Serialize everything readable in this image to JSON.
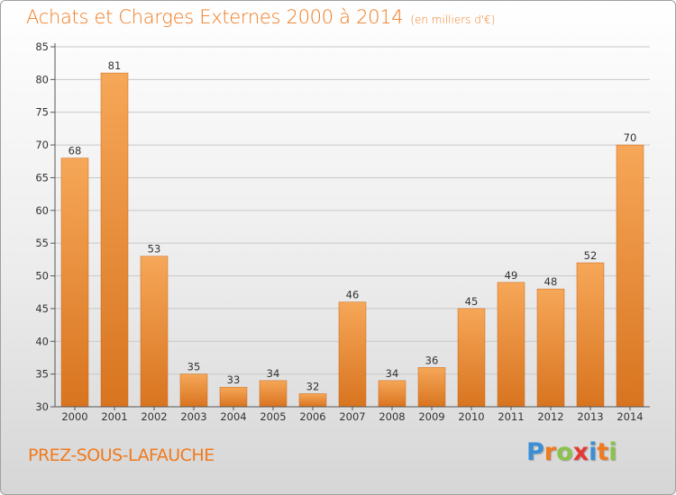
{
  "header": {
    "title": "Achats et Charges Externes 2000 à 2014",
    "unit": "(en milliers d'€)"
  },
  "footer": {
    "commune": "PREZ-SOUS-LAFAUCHE",
    "brand": "Proxiti",
    "brand_colors": [
      "#3a8fd6",
      "#f07a1e",
      "#8bc34a",
      "#e53935",
      "#3a8fd6",
      "#f07a1e",
      "#8bc34a"
    ]
  },
  "colors": {
    "bar_top": "#f6a758",
    "bar_bottom": "#d8741f",
    "accent": "#f07a1e"
  },
  "chart_data": {
    "type": "bar",
    "title": "Achats et Charges Externes 2000 à 2014",
    "categories": [
      "2000",
      "2001",
      "2002",
      "2003",
      "2004",
      "2005",
      "2006",
      "2007",
      "2008",
      "2009",
      "2010",
      "2011",
      "2012",
      "2013",
      "2014"
    ],
    "values": [
      68,
      81,
      53,
      35,
      33,
      34,
      32,
      46,
      34,
      36,
      45,
      49,
      48,
      52,
      70
    ],
    "ylim": [
      30,
      85
    ],
    "yticks": [
      30,
      35,
      40,
      45,
      50,
      55,
      60,
      65,
      70,
      75,
      80,
      85
    ],
    "grid": "horizontal",
    "data_labels": true
  }
}
